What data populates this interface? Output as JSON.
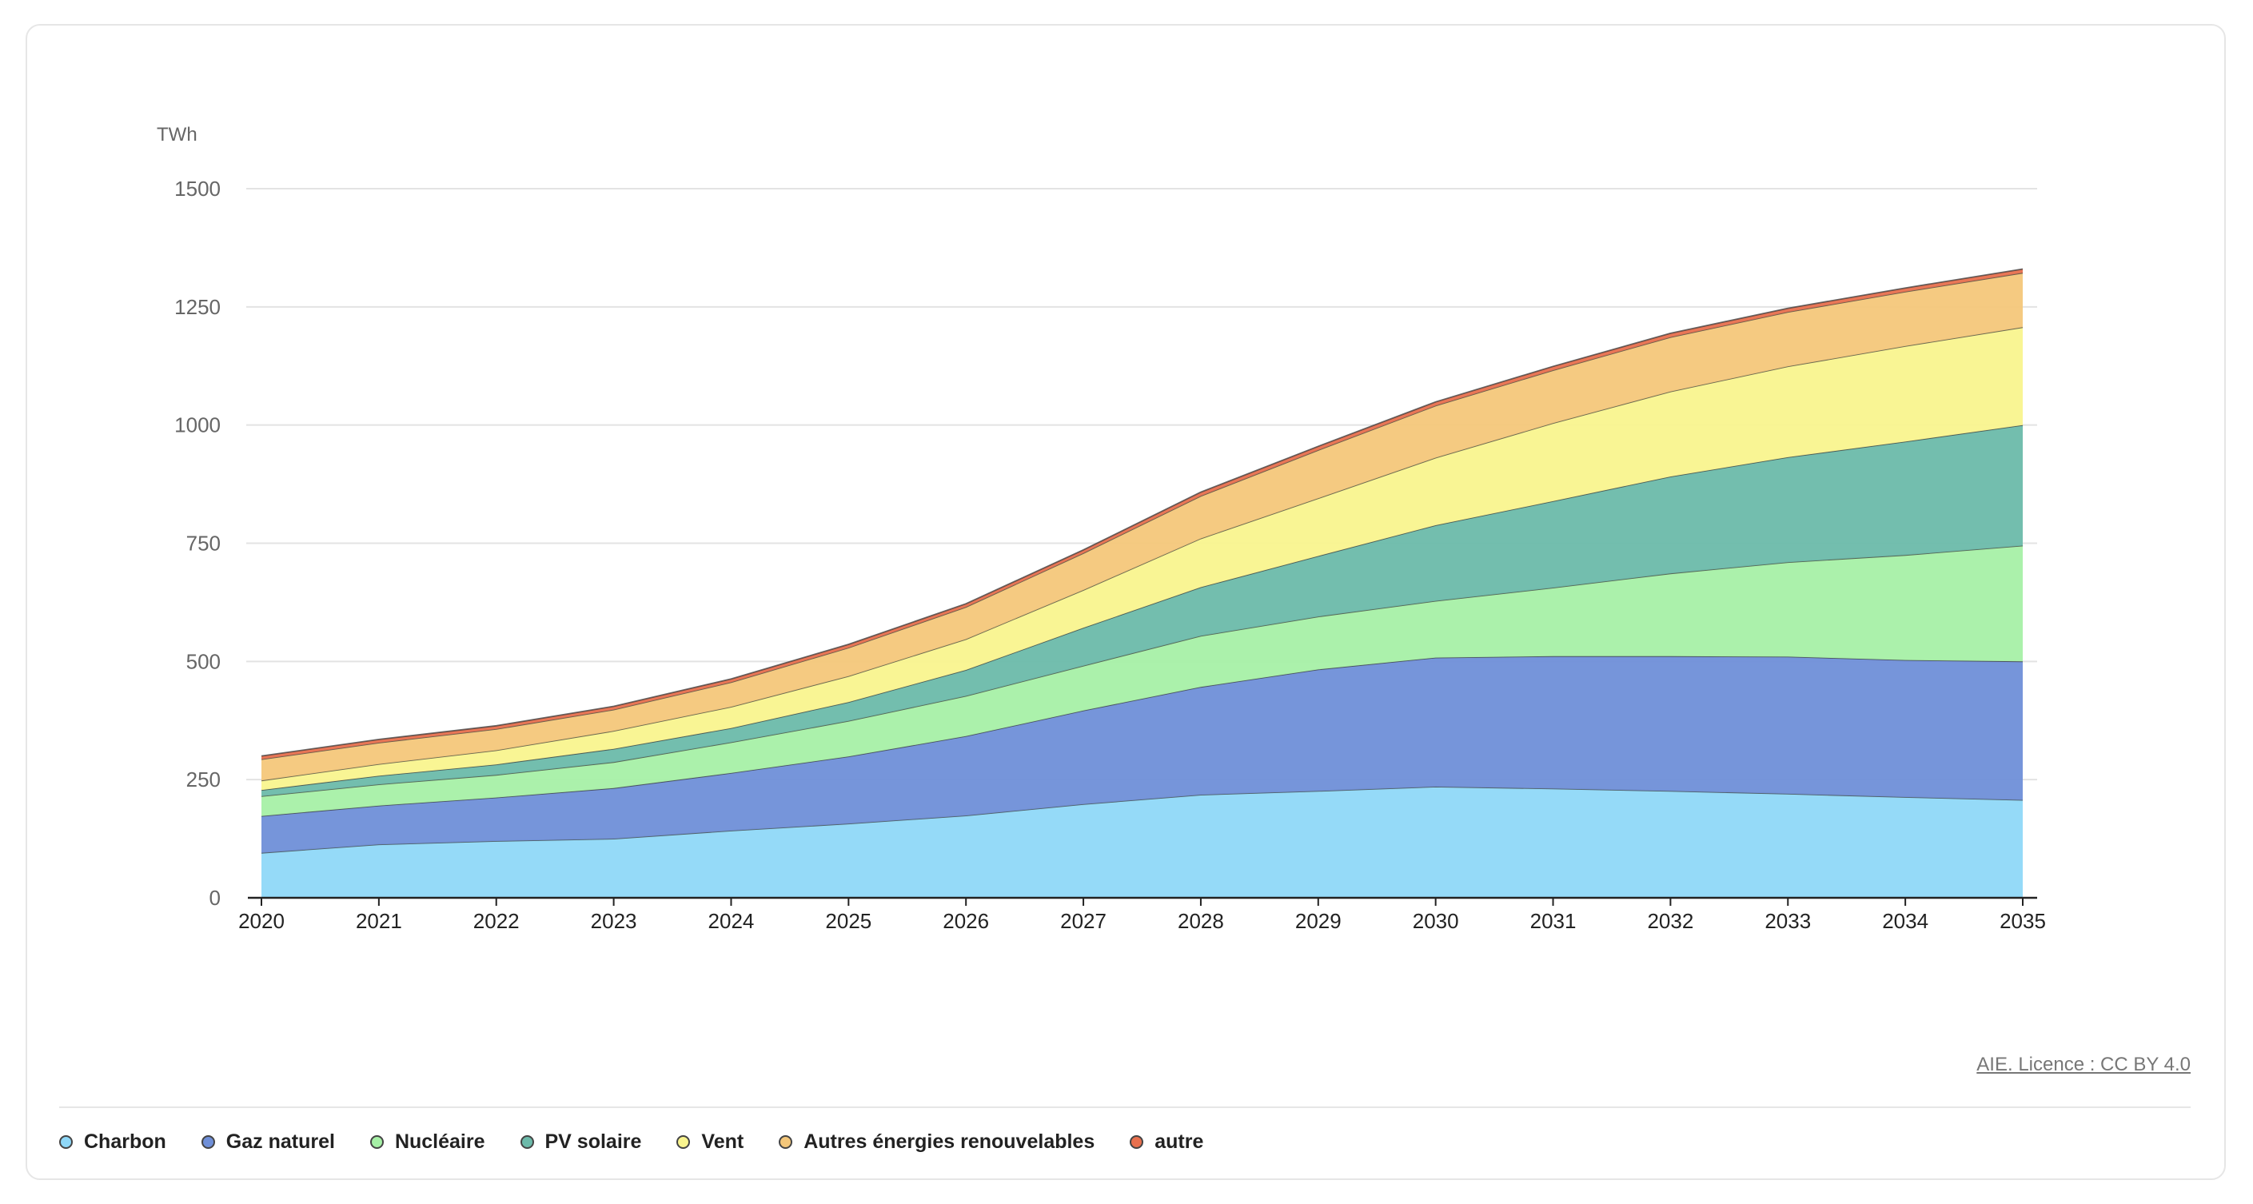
{
  "source": {
    "label": "AIE. Licence : CC BY 4.0"
  },
  "chart_data": {
    "type": "area",
    "stacked": true,
    "unit_label": "TWh",
    "x": [
      "2020",
      "2021",
      "2022",
      "2023",
      "2024",
      "2025",
      "2026",
      "2027",
      "2028",
      "2029",
      "2030",
      "2031",
      "2032",
      "2033",
      "2034",
      "2035"
    ],
    "ylim": [
      0,
      1500
    ],
    "yticks": [
      0,
      250,
      500,
      750,
      1000,
      1250,
      1500
    ],
    "grid": true,
    "legend_position": "bottom-left",
    "series": [
      {
        "name": "Charbon",
        "color": "#8fd8f8",
        "values": [
          95,
          113,
          120,
          125,
          142,
          157,
          174,
          198,
          218,
          226,
          235,
          231,
          226,
          220,
          213,
          207
        ]
      },
      {
        "name": "Gaz naturel",
        "color": "#6f8fd8",
        "values": [
          78,
          82,
          92,
          107,
          122,
          142,
          168,
          198,
          228,
          257,
          273,
          280,
          285,
          290,
          290,
          293
        ]
      },
      {
        "name": "Nucléaire",
        "color": "#a6f0a6",
        "values": [
          42,
          45,
          48,
          55,
          65,
          75,
          85,
          95,
          108,
          112,
          120,
          145,
          175,
          200,
          222,
          245
        ]
      },
      {
        "name": "PV solaire",
        "color": "#6cbaaa",
        "values": [
          13,
          18,
          22,
          28,
          30,
          40,
          55,
          80,
          103,
          128,
          160,
          183,
          205,
          222,
          240,
          255
        ]
      },
      {
        "name": "Vent",
        "color": "#f9f48e",
        "values": [
          20,
          25,
          30,
          38,
          45,
          55,
          65,
          80,
          103,
          122,
          143,
          165,
          180,
          192,
          202,
          207
        ]
      },
      {
        "name": "Autres énergies renouvelables",
        "color": "#f4c77a",
        "values": [
          45,
          45,
          45,
          45,
          52,
          60,
          68,
          78,
          90,
          102,
          110,
          112,
          115,
          115,
          115,
          115
        ]
      },
      {
        "name": "autre",
        "color": "#e8704e",
        "values": [
          7,
          7,
          7,
          7,
          7,
          7,
          7,
          7,
          8,
          8,
          8,
          8,
          8,
          8,
          8,
          8
        ]
      }
    ]
  }
}
